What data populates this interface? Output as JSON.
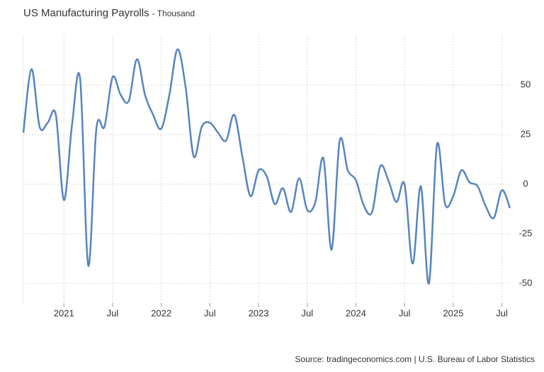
{
  "chart_data": {
    "type": "line",
    "title": "US Manufacturing Payrolls",
    "subtitle": "- Thousand",
    "source": "Source: tradingeconomics.com | U.S. Bureau of Labor Statistics",
    "x": [
      "2020-08",
      "2020-09",
      "2020-10",
      "2020-11",
      "2020-12",
      "2021-01",
      "2021-02",
      "2021-03",
      "2021-04",
      "2021-05",
      "2021-06",
      "2021-07",
      "2021-08",
      "2021-09",
      "2021-10",
      "2021-11",
      "2021-12",
      "2022-01",
      "2022-02",
      "2022-03",
      "2022-04",
      "2022-05",
      "2022-06",
      "2022-07",
      "2022-08",
      "2022-09",
      "2022-10",
      "2022-11",
      "2022-12",
      "2023-01",
      "2023-02",
      "2023-03",
      "2023-04",
      "2023-05",
      "2023-06",
      "2023-07",
      "2023-08",
      "2023-09",
      "2023-10",
      "2023-11",
      "2023-12",
      "2024-01",
      "2024-02",
      "2024-03",
      "2024-04",
      "2024-05",
      "2024-06",
      "2024-07",
      "2024-08",
      "2024-09",
      "2024-10",
      "2024-11",
      "2024-12",
      "2025-01",
      "2025-02",
      "2025-03",
      "2025-04",
      "2025-05",
      "2025-06",
      "2025-07",
      "2025-08"
    ],
    "series": [
      {
        "name": "US Manufacturing Payrolls",
        "color": "#5784bf",
        "values": [
          26,
          58,
          29,
          31,
          35,
          -8,
          30,
          53,
          -41,
          28,
          29,
          54,
          45,
          42,
          63,
          45,
          35,
          28,
          45,
          68,
          49,
          14,
          29,
          31,
          26,
          22,
          35,
          14,
          -6,
          7,
          4,
          -10,
          -2,
          -14,
          3,
          -13,
          -9,
          13,
          -33,
          22,
          7,
          2,
          -11,
          -14,
          9,
          2,
          -9,
          0,
          -40,
          -1,
          -50,
          20,
          -10,
          -6,
          7,
          1,
          -1,
          -11,
          -17,
          -3,
          -12
        ]
      }
    ],
    "ylim": [
      -60,
      75
    ],
    "yticks": [
      -50,
      -25,
      0,
      25,
      50
    ],
    "xticks": [
      {
        "value": "2021-01",
        "label": "2021"
      },
      {
        "value": "2021-07",
        "label": "Jul"
      },
      {
        "value": "2022-01",
        "label": "2022"
      },
      {
        "value": "2022-07",
        "label": "Jul"
      },
      {
        "value": "2023-01",
        "label": "2023"
      },
      {
        "value": "2023-07",
        "label": "Jul"
      },
      {
        "value": "2024-01",
        "label": "2024"
      },
      {
        "value": "2024-07",
        "label": "Jul"
      },
      {
        "value": "2025-01",
        "label": "2025"
      },
      {
        "value": "2025-07",
        "label": "Jul"
      }
    ],
    "grid": true
  }
}
